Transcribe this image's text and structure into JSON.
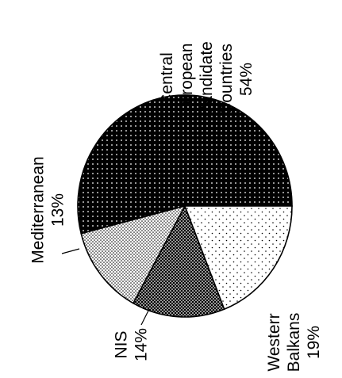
{
  "chart_data": {
    "type": "pie",
    "title": "",
    "start_angle_deg": 0,
    "direction": "counterclockwise",
    "slices": [
      {
        "label": [
          "Central",
          "European",
          "Candidate",
          "Countries"
        ],
        "percent_text": "54%",
        "value": 54,
        "pattern": "dense-black-white-dots"
      },
      {
        "label": [
          "Mediterranean"
        ],
        "percent_text": "13%",
        "value": 13,
        "pattern": "light-dots"
      },
      {
        "label": [
          "NIS"
        ],
        "percent_text": "14%",
        "value": 14,
        "pattern": "dark-dots"
      },
      {
        "label": [
          "Westerr",
          "Balkans"
        ],
        "percent_text": "19%",
        "value": 19,
        "pattern": "sparse-dots"
      }
    ]
  }
}
